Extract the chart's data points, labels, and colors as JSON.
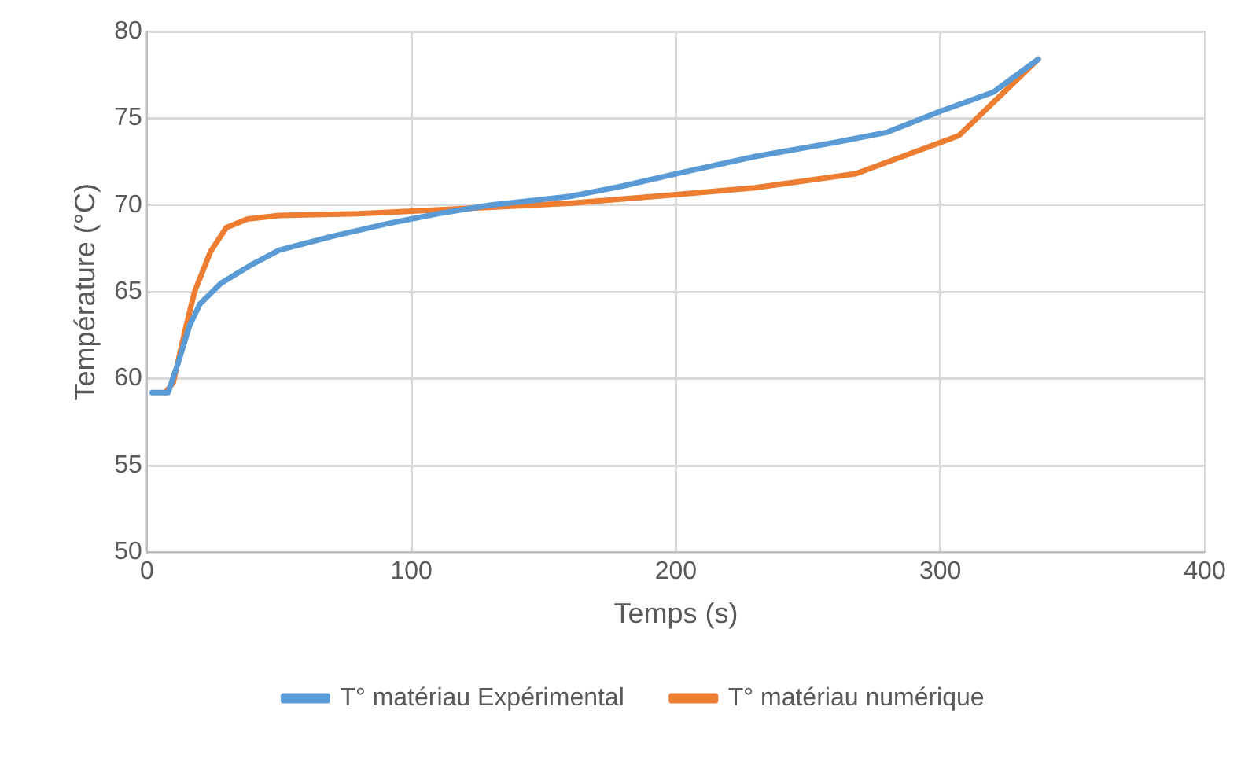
{
  "chart_data": {
    "type": "line",
    "xlabel": "Temps (s)",
    "ylabel": "Température (°C)",
    "xlim": [
      0,
      400
    ],
    "xticks": [
      0,
      100,
      200,
      300,
      400
    ],
    "ylim": [
      50,
      80
    ],
    "yticks": [
      50,
      55,
      60,
      65,
      70,
      75,
      80
    ],
    "grid": true,
    "legend": "bottom",
    "marker": "none",
    "line_style": "solid",
    "series": [
      {
        "name": "T° matériau Expérimental",
        "color": "#5b9bd5",
        "x": [
          2,
          8,
          12,
          16,
          20,
          28,
          40,
          50,
          70,
          90,
          110,
          130,
          160,
          180,
          200,
          230,
          260,
          280,
          300,
          320,
          337
        ],
        "values": [
          59.2,
          59.2,
          61,
          63,
          64.3,
          65.5,
          66.6,
          67.4,
          68.2,
          68.9,
          69.5,
          70,
          70.5,
          71.1,
          71.8,
          72.8,
          73.6,
          74.2,
          75.4,
          76.5,
          78.4
        ]
      },
      {
        "name": "T° matériau numérique",
        "color": "#ed7d31",
        "x": [
          7,
          10,
          14,
          18,
          24,
          30,
          38,
          50,
          80,
          120,
          160,
          200,
          230,
          268,
          307,
          337
        ],
        "values": [
          59.2,
          59.8,
          62.5,
          65,
          67.3,
          68.7,
          69.2,
          69.4,
          69.5,
          69.8,
          70.1,
          70.6,
          71,
          71.8,
          74,
          78.4
        ]
      }
    ]
  }
}
